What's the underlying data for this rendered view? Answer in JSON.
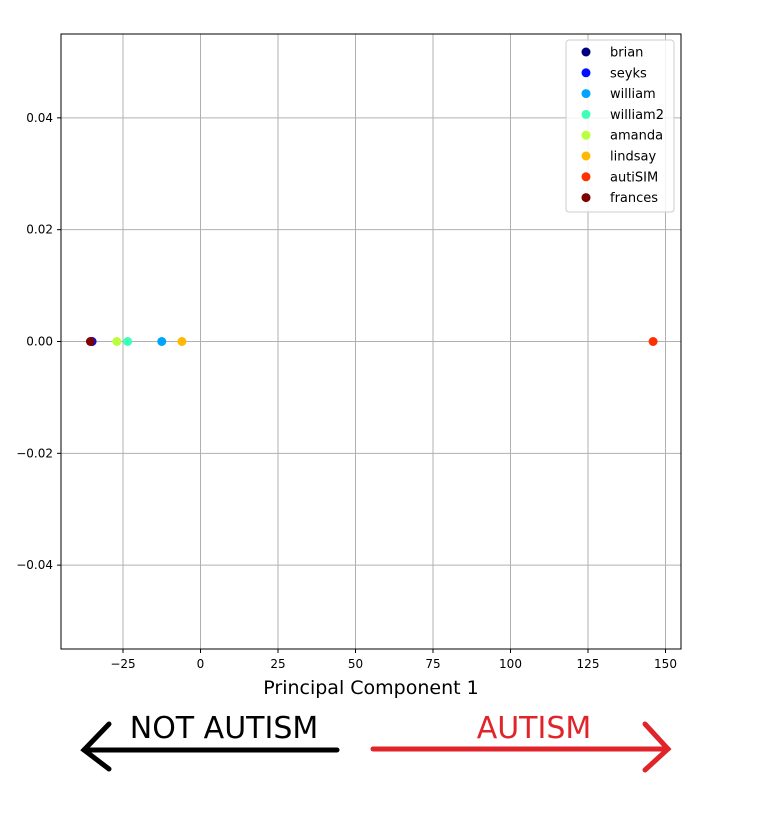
{
  "chart_data": {
    "type": "scatter",
    "title": "",
    "xlabel": "Principal Component 1",
    "ylabel": "",
    "xlim": [
      -45,
      155
    ],
    "ylim": [
      -0.055,
      0.055
    ],
    "grid": true,
    "legend_position": "top-right",
    "x_ticks": [
      -25,
      0,
      25,
      50,
      75,
      100,
      125,
      150
    ],
    "x_tick_labels": [
      "−25",
      "0",
      "25",
      "50",
      "75",
      "100",
      "125",
      "150"
    ],
    "y_ticks": [
      -0.04,
      -0.02,
      0.0,
      0.02,
      0.04
    ],
    "y_tick_labels": [
      "−0.04",
      "−0.02",
      "0.00",
      "0.02",
      "0.04"
    ],
    "series": [
      {
        "name": "brian",
        "color": "#00007f",
        "x": [
          -35
        ],
        "y": [
          0
        ]
      },
      {
        "name": "seyks",
        "color": "#0010ff",
        "x": [
          -35
        ],
        "y": [
          0
        ]
      },
      {
        "name": "william",
        "color": "#00a4ff",
        "x": [
          -12.5
        ],
        "y": [
          0
        ]
      },
      {
        "name": "william2",
        "color": "#3dffb9",
        "x": [
          -23.5
        ],
        "y": [
          0
        ]
      },
      {
        "name": "amanda",
        "color": "#b9ff3d",
        "x": [
          -27
        ],
        "y": [
          0
        ]
      },
      {
        "name": "lindsay",
        "color": "#ffb900",
        "x": [
          -6
        ],
        "y": [
          0
        ]
      },
      {
        "name": "autiSIM",
        "color": "#ff3000",
        "x": [
          146
        ],
        "y": [
          0
        ]
      },
      {
        "name": "frances",
        "color": "#7f0000",
        "x": [
          -35.5
        ],
        "y": [
          0
        ]
      }
    ]
  },
  "annotations": {
    "left_label": "NOT AUTISM",
    "left_color": "#000000",
    "right_label": "AUTISM",
    "right_color": "#e0242a"
  }
}
